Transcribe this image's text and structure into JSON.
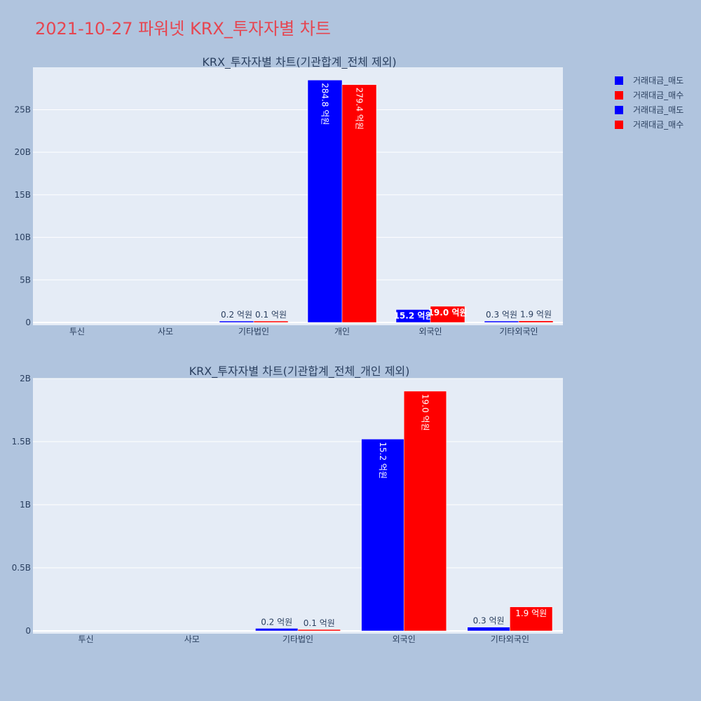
{
  "page_title": "2021-10-27 파워넷 KRX_투자자별 차트",
  "colors": {
    "sell": "#0000ff",
    "buy": "#ff0000",
    "plot_bg": "#e5ecf6",
    "page_bg": "#b0c4de",
    "title": "#e64550"
  },
  "legend": [
    {
      "label": "거래대금_매도",
      "color": "#0000ff"
    },
    {
      "label": "거래대금_매수",
      "color": "#ff0000"
    },
    {
      "label": "거래대금_매도",
      "color": "#0000ff"
    },
    {
      "label": "거래대금_매수",
      "color": "#ff0000"
    }
  ],
  "chart_data": [
    {
      "type": "bar",
      "title": "KRX_투자자별 차트(기관합계_전체 제외)",
      "categories": [
        "투신",
        "사모",
        "기타법인",
        "개인",
        "외국인",
        "기타외국인"
      ],
      "series": [
        {
          "name": "거래대금_매도",
          "color": "#0000ff",
          "values": [
            0,
            0,
            20000000,
            28480000000,
            1520000000,
            30000000
          ],
          "labels": [
            "",
            "",
            "0.2 억원",
            "284.8 억원",
            "15.2 억원",
            "0.3 억원"
          ]
        },
        {
          "name": "거래대금_매수",
          "color": "#ff0000",
          "values": [
            0,
            0,
            10000000,
            27940000000,
            1900000000,
            190000000
          ],
          "labels": [
            "",
            "",
            "0.1 억원",
            "279.4 억원",
            "19.0 억원",
            "1.9 억원"
          ]
        }
      ],
      "ylim": [
        0,
        29978947368
      ],
      "yticks": [
        0,
        5000000000,
        10000000000,
        15000000000,
        20000000000,
        25000000000
      ],
      "ytick_labels": [
        "0",
        "5B",
        "10B",
        "15B",
        "20B",
        "25B"
      ],
      "grid": true
    },
    {
      "type": "bar",
      "title": "KRX_투자자별 차트(기관합계_전체_개인 제외)",
      "categories": [
        "투신",
        "사모",
        "기타법인",
        "외국인",
        "기타외국인"
      ],
      "series": [
        {
          "name": "거래대금_매도",
          "color": "#0000ff",
          "values": [
            0,
            0,
            20000000,
            1520000000,
            30000000
          ],
          "labels": [
            "",
            "",
            "0.2 억원",
            "15.2 억원",
            "0.3 억원"
          ]
        },
        {
          "name": "거래대금_매수",
          "color": "#ff0000",
          "values": [
            0,
            0,
            10000000,
            1900000000,
            190000000
          ],
          "labels": [
            "",
            "",
            "0.1 억원",
            "19.0 억원",
            "1.9 억원"
          ]
        }
      ],
      "ylim": [
        0,
        2000000000
      ],
      "yticks": [
        0,
        500000000,
        1000000000,
        1500000000,
        2000000000
      ],
      "ytick_labels": [
        "0",
        "0.5B",
        "1B",
        "1.5B",
        "2B"
      ],
      "grid": true
    }
  ]
}
